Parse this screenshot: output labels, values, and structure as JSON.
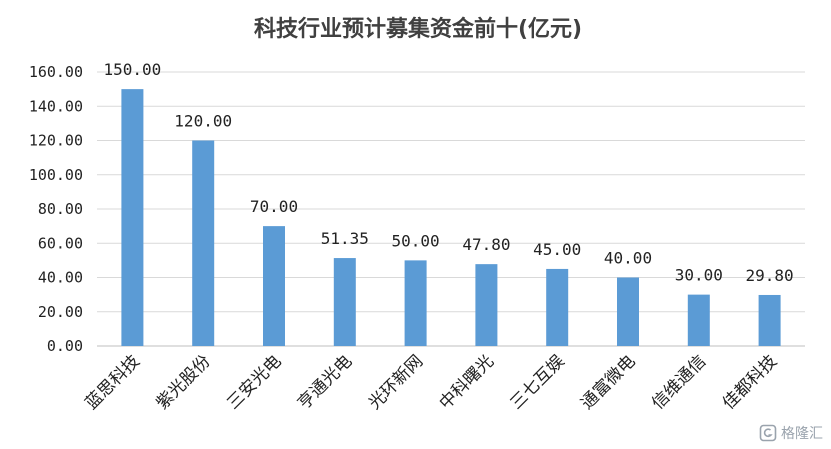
{
  "chart_data": {
    "type": "bar",
    "title": "科技行业预计募集资金前十(亿元)",
    "categories": [
      "蓝思科技",
      "紫光股份",
      "三安光电",
      "亨通光电",
      "光环新网",
      "中科曙光",
      "三七互娱",
      "通富微电",
      "信维通信",
      "佳都科技"
    ],
    "values": [
      150.0,
      120.0,
      70.0,
      51.35,
      50.0,
      47.8,
      45.0,
      40.0,
      30.0,
      29.8
    ],
    "value_labels": [
      "150.00",
      "120.00",
      "70.00",
      "51.35",
      "50.00",
      "47.80",
      "45.00",
      "40.00",
      "30.00",
      "29.80"
    ],
    "y_ticks": [
      "0.00",
      "20.00",
      "40.00",
      "60.00",
      "80.00",
      "100.00",
      "120.00",
      "140.00",
      "160.00"
    ],
    "ylim": [
      0,
      160
    ],
    "grid": true,
    "legend": "none",
    "bar_color": "#5b9bd5"
  },
  "watermark": {
    "text": "格隆汇",
    "icon": "glh-logo-icon"
  }
}
